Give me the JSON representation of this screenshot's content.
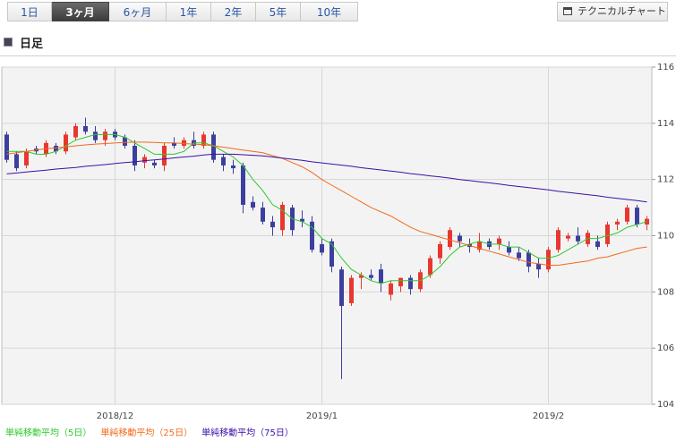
{
  "tabs": [
    {
      "label": "1日",
      "selected": false
    },
    {
      "label": "3ヶ月",
      "selected": true
    },
    {
      "label": "6ヶ月",
      "selected": false
    },
    {
      "label": "1年",
      "selected": false
    },
    {
      "label": "2年",
      "selected": false
    },
    {
      "label": "5年",
      "selected": false
    },
    {
      "label": "10年",
      "selected": false
    }
  ],
  "technical_chart_button": {
    "label": "テクニカルチャート"
  },
  "section": {
    "title": "日足"
  },
  "chart_data": {
    "type": "candlestick",
    "categories": [
      null,
      null,
      null,
      null,
      null,
      null,
      null,
      null,
      null,
      null,
      null,
      "2018/12",
      null,
      null,
      null,
      null,
      null,
      null,
      null,
      null,
      null,
      null,
      null,
      null,
      null,
      null,
      null,
      null,
      null,
      null,
      null,
      null,
      "2019/1",
      null,
      null,
      null,
      null,
      null,
      null,
      null,
      null,
      null,
      null,
      null,
      null,
      null,
      null,
      null,
      null,
      null,
      null,
      null,
      null,
      null,
      null,
      "2019/2",
      null,
      null,
      null,
      null,
      null,
      null,
      null,
      null,
      null,
      null
    ],
    "ohlc": {
      "open": [
        113.6,
        112.9,
        112.5,
        113.1,
        112.9,
        113.2,
        113.0,
        113.5,
        113.9,
        113.7,
        113.4,
        113.7,
        113.5,
        113.2,
        112.6,
        112.6,
        112.5,
        113.3,
        113.2,
        113.4,
        113.2,
        113.6,
        112.8,
        112.5,
        112.5,
        111.2,
        111.0,
        110.5,
        110.2,
        111.0,
        110.6,
        110.5,
        109.7,
        109.8,
        108.8,
        107.6,
        108.5,
        108.6,
        108.8,
        107.9,
        108.2,
        108.5,
        108.1,
        108.6,
        109.2,
        109.6,
        110.0,
        109.7,
        109.5,
        109.8,
        109.7,
        109.6,
        109.4,
        109.4,
        109.0,
        108.8,
        109.5,
        109.9,
        110.0,
        109.7,
        109.8,
        109.7,
        110.4,
        110.5,
        111.0,
        110.4
      ],
      "high": [
        113.7,
        113.0,
        113.1,
        113.2,
        113.4,
        113.3,
        113.7,
        114.0,
        114.2,
        113.9,
        113.8,
        113.8,
        113.6,
        113.4,
        112.9,
        112.7,
        113.3,
        113.5,
        113.5,
        113.7,
        113.7,
        113.7,
        112.9,
        112.7,
        112.6,
        111.4,
        111.2,
        110.7,
        111.2,
        111.1,
        110.9,
        110.7,
        109.9,
        109.9,
        108.9,
        108.6,
        108.7,
        108.8,
        109.0,
        108.4,
        108.5,
        108.6,
        108.8,
        109.3,
        109.8,
        110.3,
        110.1,
        109.9,
        110.1,
        109.9,
        110.0,
        109.8,
        109.6,
        109.5,
        109.2,
        109.6,
        110.3,
        110.1,
        110.3,
        110.2,
        110.0,
        110.5,
        110.6,
        111.1,
        111.1,
        110.7
      ],
      "low": [
        112.6,
        112.3,
        112.4,
        112.9,
        112.8,
        112.9,
        112.9,
        113.4,
        113.6,
        113.3,
        113.2,
        113.4,
        113.1,
        112.3,
        112.4,
        112.4,
        112.3,
        113.1,
        113.1,
        113.1,
        113.1,
        112.6,
        112.3,
        112.2,
        110.8,
        110.9,
        110.4,
        110.0,
        110.0,
        110.0,
        110.3,
        109.4,
        109.3,
        108.7,
        104.9,
        107.5,
        108.1,
        108.4,
        108.0,
        107.7,
        108.0,
        107.9,
        108.0,
        108.5,
        109.0,
        109.5,
        109.6,
        109.4,
        109.4,
        109.5,
        109.5,
        109.3,
        109.1,
        108.7,
        108.5,
        108.7,
        109.4,
        109.8,
        109.7,
        109.6,
        109.5,
        109.6,
        110.2,
        110.4,
        110.3,
        110.2
      ],
      "close": [
        112.7,
        112.4,
        113.0,
        113.0,
        113.3,
        113.0,
        113.6,
        113.9,
        113.7,
        113.4,
        113.7,
        113.5,
        113.2,
        112.5,
        112.8,
        112.5,
        113.2,
        113.2,
        113.4,
        113.2,
        113.6,
        112.7,
        112.5,
        112.4,
        111.1,
        111.0,
        110.5,
        110.3,
        111.1,
        110.2,
        110.5,
        109.5,
        109.4,
        108.9,
        107.5,
        108.5,
        108.6,
        108.5,
        108.3,
        108.3,
        108.5,
        108.1,
        108.7,
        109.2,
        109.7,
        110.2,
        109.8,
        109.6,
        109.8,
        109.6,
        109.9,
        109.4,
        109.2,
        108.9,
        108.8,
        109.5,
        110.2,
        110.0,
        109.8,
        110.1,
        109.6,
        110.4,
        110.5,
        111.0,
        110.4,
        110.6
      ]
    },
    "up_color": "#e8372f",
    "down_color": "#3c3f9e",
    "series": [
      {
        "name": "単純移動平均（5日）",
        "color": "#2ec82e",
        "values": [
          113.0,
          113.0,
          113.0,
          112.9,
          112.9,
          113.0,
          113.2,
          113.4,
          113.5,
          113.6,
          113.6,
          113.6,
          113.5,
          113.3,
          113.1,
          112.9,
          112.9,
          112.9,
          113.0,
          113.3,
          113.3,
          113.2,
          113.0,
          112.8,
          112.5,
          112.0,
          111.6,
          111.1,
          110.9,
          110.6,
          110.5,
          110.3,
          109.9,
          109.7,
          109.2,
          108.8,
          108.6,
          108.4,
          108.3,
          108.4,
          108.4,
          108.4,
          108.4,
          108.6,
          108.9,
          109.3,
          109.6,
          109.7,
          109.8,
          109.7,
          109.7,
          109.6,
          109.6,
          109.4,
          109.2,
          109.2,
          109.3,
          109.5,
          109.7,
          109.9,
          109.9,
          110.0,
          110.1,
          110.3,
          110.4,
          110.5
        ]
      },
      {
        "name": "単純移動平均（25日）",
        "color": "#f26a1b",
        "values": [
          112.9,
          112.95,
          113.0,
          113.05,
          113.1,
          113.13,
          113.16,
          113.2,
          113.23,
          113.26,
          113.28,
          113.3,
          113.32,
          113.33,
          113.33,
          113.32,
          113.3,
          113.3,
          113.28,
          113.26,
          113.24,
          113.2,
          113.15,
          113.1,
          113.05,
          113.0,
          112.95,
          112.85,
          112.75,
          112.6,
          112.45,
          112.25,
          112.0,
          111.8,
          111.6,
          111.4,
          111.2,
          111.0,
          110.85,
          110.7,
          110.5,
          110.3,
          110.15,
          110.05,
          109.95,
          109.85,
          109.75,
          109.65,
          109.55,
          109.45,
          109.35,
          109.25,
          109.15,
          109.05,
          109.0,
          108.95,
          108.95,
          109.0,
          109.05,
          109.1,
          109.2,
          109.25,
          109.35,
          109.45,
          109.55,
          109.6
        ]
      },
      {
        "name": "単純移動平均（75日）",
        "color": "#3a10a8",
        "values": [
          112.2,
          112.23,
          112.27,
          112.3,
          112.33,
          112.37,
          112.4,
          112.43,
          112.47,
          112.5,
          112.53,
          112.57,
          112.6,
          112.63,
          112.67,
          112.7,
          112.73,
          112.77,
          112.8,
          112.83,
          112.87,
          112.9,
          112.9,
          112.9,
          112.88,
          112.86,
          112.84,
          112.8,
          112.76,
          112.72,
          112.68,
          112.63,
          112.59,
          112.55,
          112.51,
          112.47,
          112.42,
          112.38,
          112.34,
          112.3,
          112.26,
          112.21,
          112.17,
          112.13,
          112.09,
          112.05,
          112.0,
          111.96,
          111.92,
          111.88,
          111.84,
          111.79,
          111.75,
          111.71,
          111.67,
          111.63,
          111.58,
          111.54,
          111.5,
          111.46,
          111.42,
          111.37,
          111.33,
          111.29,
          111.25,
          111.2
        ]
      }
    ],
    "ylim": [
      104,
      116
    ],
    "yticks": [
      104,
      106,
      108,
      110,
      112,
      114,
      116
    ],
    "grid": true
  }
}
